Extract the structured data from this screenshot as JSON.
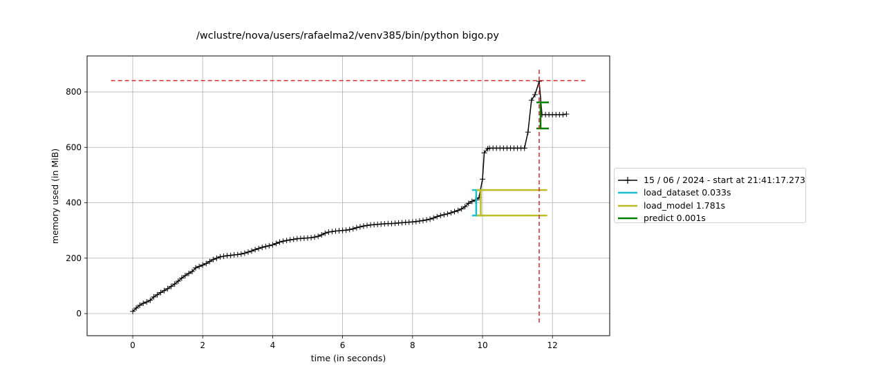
{
  "chart_data": {
    "type": "line",
    "title": "/wclustre/nova/users/rafaelma2/venv385/bin/python bigo.py",
    "xlabel": "time (in seconds)",
    "ylabel": "memory used (in MiB)",
    "xlim": [
      -1.3,
      13.6
    ],
    "ylim": [
      -80,
      930
    ],
    "x_ticks": [
      0,
      2,
      4,
      6,
      8,
      10,
      12
    ],
    "y_ticks": [
      0,
      200,
      400,
      600,
      800
    ],
    "grid": true,
    "legend_position": "right",
    "series": [
      {
        "name": "15 / 06 / 2024 - start at 21:41:17.273",
        "color": "#000000",
        "marker": "+",
        "x": [
          0,
          0.1,
          0.2,
          0.3,
          0.4,
          0.5,
          0.6,
          0.7,
          0.8,
          0.9,
          1.0,
          1.1,
          1.2,
          1.3,
          1.4,
          1.5,
          1.6,
          1.7,
          1.8,
          1.9,
          2.0,
          2.1,
          2.2,
          2.3,
          2.4,
          2.5,
          2.6,
          2.7,
          2.8,
          2.9,
          3.0,
          3.1,
          3.2,
          3.3,
          3.4,
          3.5,
          3.6,
          3.7,
          3.8,
          3.9,
          4.0,
          4.1,
          4.2,
          4.3,
          4.4,
          4.5,
          4.6,
          4.7,
          4.8,
          4.9,
          5.0,
          5.1,
          5.2,
          5.3,
          5.4,
          5.5,
          5.6,
          5.7,
          5.8,
          5.9,
          6.0,
          6.1,
          6.2,
          6.3,
          6.4,
          6.5,
          6.6,
          6.7,
          6.8,
          6.9,
          7.0,
          7.1,
          7.2,
          7.3,
          7.4,
          7.5,
          7.6,
          7.7,
          7.8,
          7.9,
          8.0,
          8.1,
          8.2,
          8.3,
          8.4,
          8.5,
          8.6,
          8.7,
          8.8,
          8.9,
          9.0,
          9.1,
          9.2,
          9.3,
          9.4,
          9.5,
          9.6,
          9.7,
          9.8,
          9.9,
          10.0,
          10.05,
          10.15,
          10.2,
          10.3,
          10.4,
          10.5,
          10.6,
          10.7,
          10.8,
          10.9,
          11.0,
          11.1,
          11.2,
          11.3,
          11.4,
          11.5,
          11.62,
          11.7,
          11.8,
          11.9,
          12.0,
          12.1,
          12.2,
          12.3,
          12.4
        ],
        "y": [
          8,
          20,
          30,
          37,
          42,
          48,
          60,
          68,
          76,
          83,
          90,
          98,
          107,
          117,
          128,
          137,
          145,
          152,
          165,
          170,
          175,
          181,
          188,
          195,
          200,
          205,
          207,
          209,
          210,
          212,
          213,
          215,
          218,
          222,
          226,
          231,
          235,
          239,
          242,
          245,
          248,
          253,
          258,
          261,
          264,
          266,
          268,
          270,
          271,
          272,
          273,
          274,
          276,
          279,
          284,
          290,
          294,
          296,
          298,
          299,
          300,
          301,
          303,
          306,
          310,
          313,
          316,
          318,
          320,
          321,
          322,
          323,
          324,
          325,
          325,
          326,
          327,
          328,
          329,
          330,
          331,
          332,
          334,
          336,
          338,
          341,
          345,
          350,
          354,
          357,
          360,
          364,
          368,
          372,
          378,
          386,
          398,
          405,
          410,
          418,
          485,
          580,
          595,
          597,
          597,
          597,
          597,
          597,
          597,
          597,
          597,
          597,
          597,
          597,
          655,
          770,
          790,
          838,
          718,
          718,
          718,
          718,
          718,
          718,
          718,
          720
        ]
      },
      {
        "name": "load_dataset 0.033s",
        "color": "#17becf",
        "bracket": {
          "x_start": 9.82,
          "x_end": 9.853,
          "y_low": 354,
          "y_high": 446
        }
      },
      {
        "name": "load_model 1.781s",
        "color": "#bcbd22",
        "bracket": {
          "x_start": 9.95,
          "x_end": 11.731,
          "y_low": 354,
          "y_high": 446
        }
      },
      {
        "name": "predict 0.001s",
        "color": "#008000",
        "bracket": {
          "x_start": 11.66,
          "x_end": 11.661,
          "y_low": 668,
          "y_high": 762
        }
      }
    ],
    "peak_lines": {
      "color": "#d62728",
      "horizontal_y": 841,
      "horizontal_x_range": [
        -0.62,
        12.97
      ],
      "vertical_x": 11.62,
      "vertical_y_range": [
        -32,
        880
      ]
    }
  }
}
